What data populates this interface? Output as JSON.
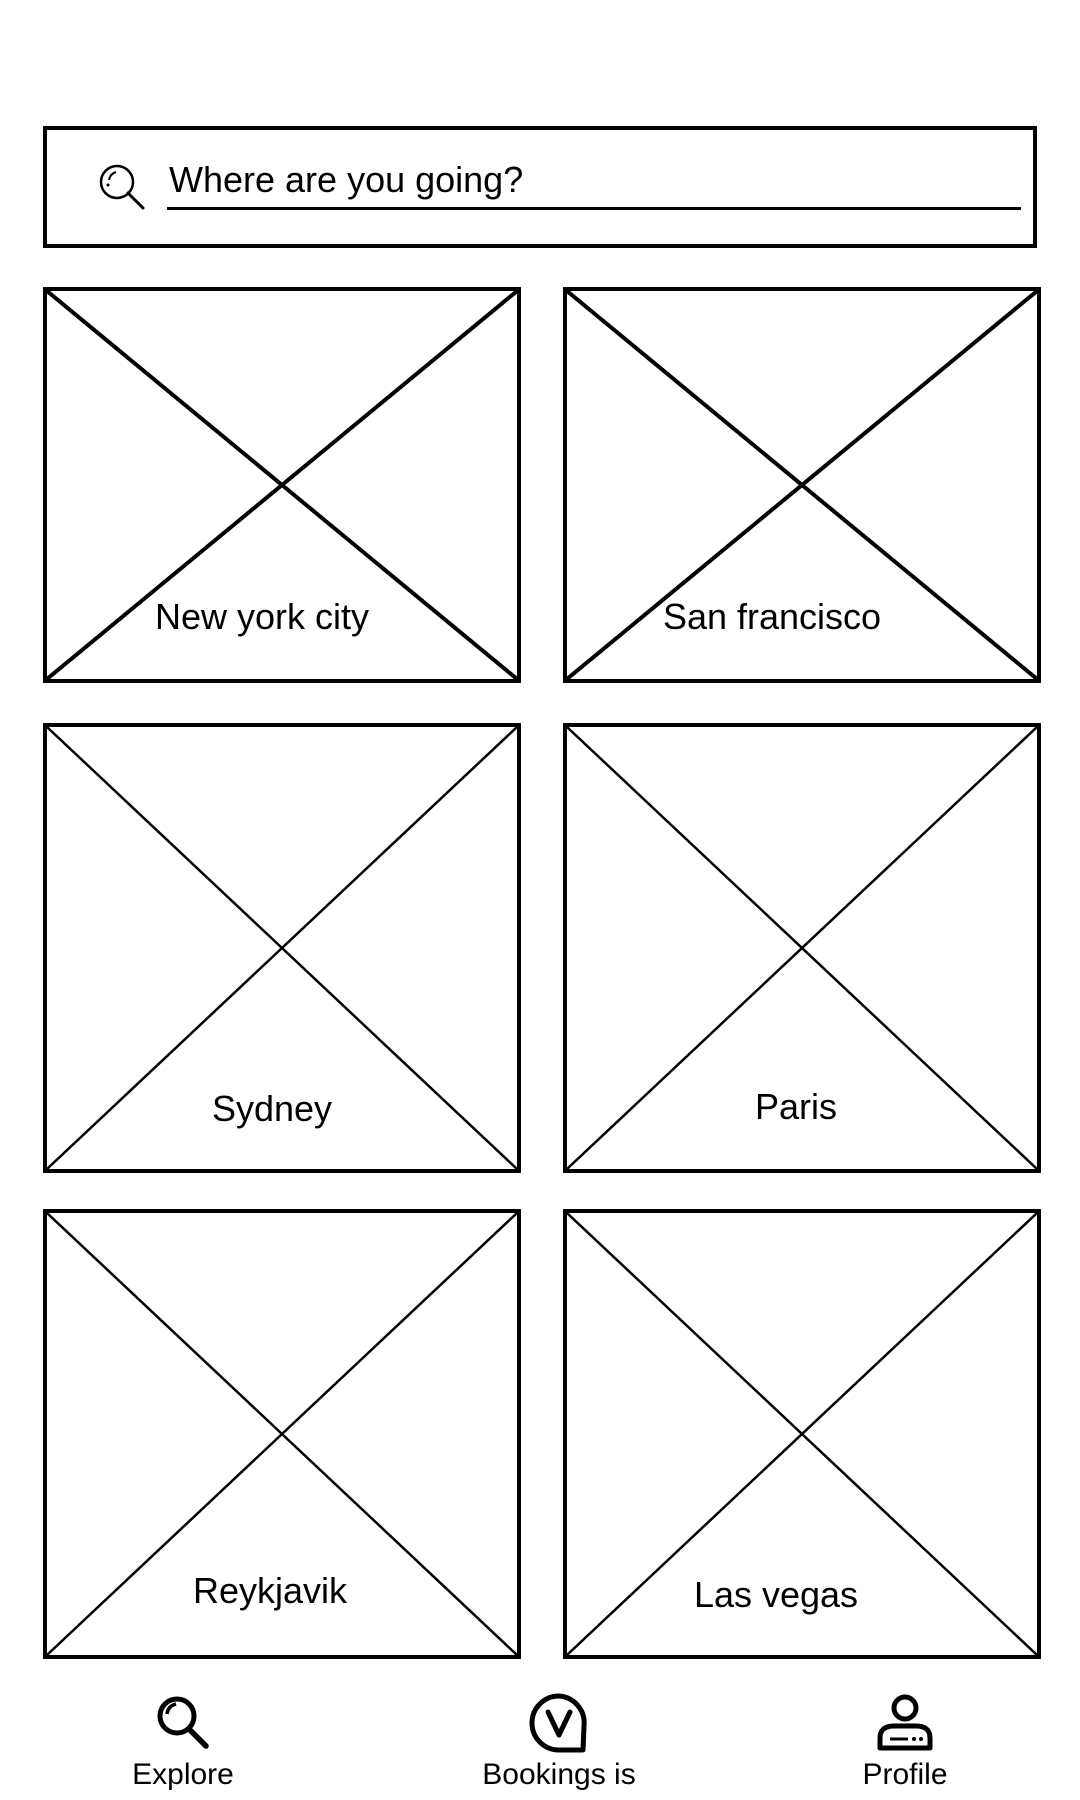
{
  "search": {
    "placeholder": "Where are you going?",
    "icon": "search-icon"
  },
  "cities": [
    {
      "name": "New york city"
    },
    {
      "name": "San francisco"
    },
    {
      "name": "Sydney"
    },
    {
      "name": "Paris"
    },
    {
      "name": "Reykjavik"
    },
    {
      "name": "Las vegas"
    }
  ],
  "bottom_nav": {
    "items": [
      {
        "label": "Explore",
        "icon": "search-icon"
      },
      {
        "label": "Bookings is",
        "icon": "bookings-icon"
      },
      {
        "label": "Profile",
        "icon": "user-icon"
      }
    ]
  }
}
